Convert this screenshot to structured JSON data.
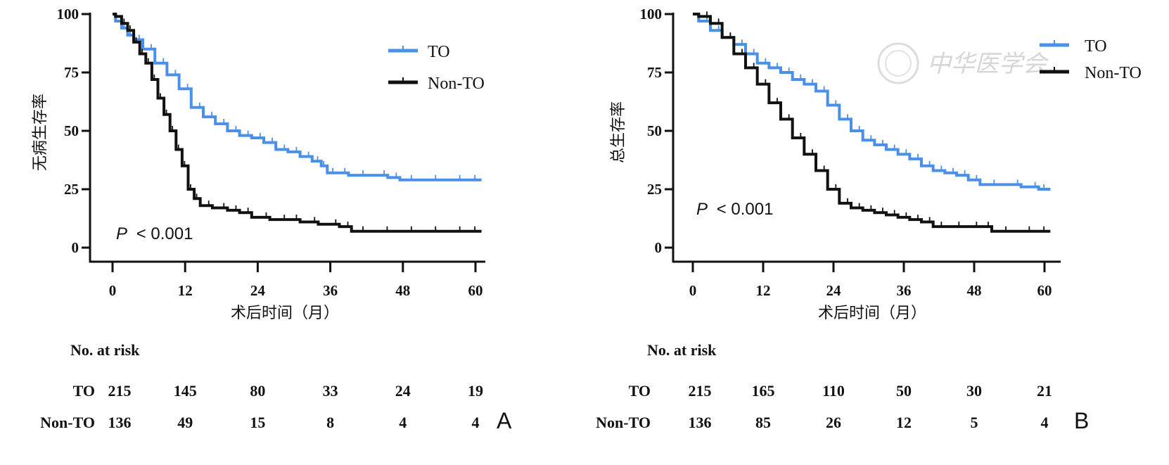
{
  "colors": {
    "to": "#4a90e8",
    "non_to": "#111111",
    "axis": "#111111",
    "watermark": "#d0d0d0"
  },
  "watermark": {
    "text": "中华医学会"
  },
  "chart_data": [
    {
      "type": "line",
      "subtype": "kaplan-meier",
      "panel_label": "A",
      "title": "",
      "xlabel": "术后时间（月）",
      "ylabel": "无病生存率",
      "xlim": [
        0,
        61
      ],
      "ylim": [
        0,
        100
      ],
      "xticks": [
        0,
        12,
        24,
        36,
        48,
        60
      ],
      "yticks": [
        0,
        25,
        50,
        75,
        100
      ],
      "grid": false,
      "legend": {
        "position": "top-right",
        "entries": [
          "TO",
          "Non-TO"
        ]
      },
      "annotation": {
        "p_label": "P",
        "p_text": "< 0.001"
      },
      "series": [
        {
          "name": "TO",
          "color": "#4a90e8",
          "x": [
            0,
            1,
            2,
            3,
            4,
            6,
            8,
            10,
            12,
            14,
            16,
            18,
            20,
            22,
            24,
            26,
            28,
            30,
            32,
            34,
            35,
            36,
            38,
            40,
            44,
            47,
            48,
            52,
            56,
            60,
            61
          ],
          "y": [
            100,
            97,
            94,
            91,
            89,
            85,
            79,
            74,
            68,
            60,
            56,
            53,
            50,
            48,
            47,
            45,
            42,
            41,
            39,
            37,
            35,
            32,
            32,
            31,
            31,
            30,
            29,
            29,
            29,
            29,
            29
          ]
        },
        {
          "name": "Non-TO",
          "color": "#111111",
          "x": [
            0,
            1,
            2,
            3,
            4,
            5,
            6,
            7,
            8,
            9,
            10,
            11,
            12,
            13,
            14,
            15,
            18,
            20,
            22,
            24,
            28,
            30,
            32,
            36,
            39,
            40,
            44,
            48,
            52,
            56,
            60,
            61
          ],
          "y": [
            100,
            99,
            96,
            93,
            88,
            83,
            79,
            72,
            64,
            57,
            50,
            42,
            35,
            25,
            21,
            18,
            17,
            16,
            15,
            13,
            12,
            12,
            11,
            10,
            9,
            7,
            7,
            7,
            7,
            7,
            7,
            7
          ]
        }
      ],
      "risk_table": {
        "title": "No. at risk",
        "times": [
          0,
          12,
          24,
          36,
          48,
          60
        ],
        "rows": [
          {
            "label": "TO",
            "values": [
              215,
              145,
              80,
              33,
              24,
              19
            ]
          },
          {
            "label": "Non-TO",
            "values": [
              136,
              49,
              15,
              8,
              4,
              4
            ]
          }
        ]
      }
    },
    {
      "type": "line",
      "subtype": "kaplan-meier",
      "panel_label": "B",
      "title": "",
      "xlabel": "术后时间（月）",
      "ylabel": "总生存率",
      "xlim": [
        0,
        61
      ],
      "ylim": [
        0,
        100
      ],
      "xticks": [
        0,
        12,
        24,
        36,
        48,
        60
      ],
      "yticks": [
        0,
        25,
        50,
        75,
        100
      ],
      "grid": false,
      "legend": {
        "position": "top-right",
        "entries": [
          "TO",
          "Non-TO"
        ]
      },
      "annotation": {
        "p_label": "P",
        "p_text": "< 0.001"
      },
      "series": [
        {
          "name": "TO",
          "color": "#4a90e8",
          "x": [
            0,
            2,
            4,
            6,
            8,
            10,
            12,
            14,
            16,
            18,
            20,
            22,
            24,
            26,
            28,
            30,
            32,
            34,
            36,
            38,
            40,
            42,
            44,
            46,
            48,
            50,
            54,
            58,
            60,
            61
          ],
          "y": [
            100,
            97,
            93,
            90,
            87,
            83,
            79,
            77,
            75,
            72,
            70,
            67,
            61,
            55,
            50,
            46,
            44,
            42,
            40,
            38,
            35,
            33,
            32,
            31,
            29,
            27,
            27,
            26,
            25,
            25
          ]
        },
        {
          "name": "Non-TO",
          "color": "#111111",
          "x": [
            0,
            2,
            4,
            6,
            8,
            10,
            12,
            14,
            16,
            18,
            20,
            22,
            24,
            26,
            28,
            30,
            32,
            34,
            36,
            38,
            40,
            42,
            44,
            48,
            50,
            52,
            56,
            60,
            61
          ],
          "y": [
            100,
            99,
            96,
            90,
            83,
            77,
            70,
            62,
            55,
            47,
            40,
            33,
            25,
            19,
            17,
            16,
            15,
            14,
            13,
            12,
            11,
            9,
            9,
            9,
            9,
            7,
            7,
            7,
            7
          ]
        }
      ],
      "risk_table": {
        "title": "No. at risk",
        "times": [
          0,
          12,
          24,
          36,
          48,
          60
        ],
        "rows": [
          {
            "label": "TO",
            "values": [
              215,
              165,
              110,
              50,
              30,
              21
            ]
          },
          {
            "label": "Non-TO",
            "values": [
              136,
              85,
              26,
              12,
              5,
              4
            ]
          }
        ]
      }
    }
  ]
}
